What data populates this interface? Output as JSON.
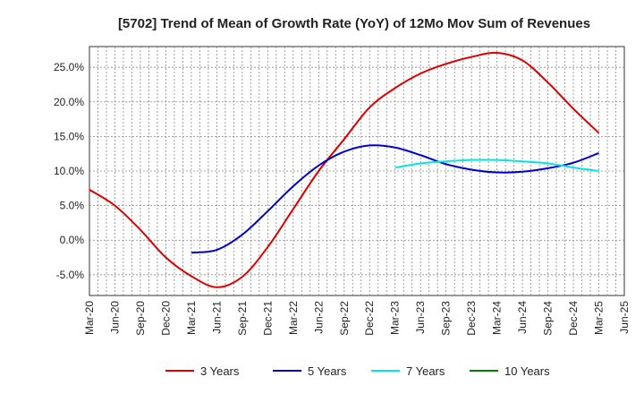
{
  "chart_data": {
    "type": "line",
    "title": "[5702]  Trend of Mean of Growth Rate (YoY) of 12Mo Mov Sum of Revenues",
    "xlabel": "",
    "ylabel": "",
    "ylim": [
      -8,
      28
    ],
    "yticks": [
      -5,
      0,
      5,
      10,
      15,
      20,
      25
    ],
    "ytick_labels": [
      "-5.0%",
      "0.0%",
      "5.0%",
      "10.0%",
      "15.0%",
      "20.0%",
      "25.0%"
    ],
    "categories": [
      "Mar-20",
      "Jun-20",
      "Sep-20",
      "Dec-20",
      "Mar-21",
      "Jun-21",
      "Sep-21",
      "Dec-21",
      "Mar-22",
      "Jun-22",
      "Sep-22",
      "Dec-22",
      "Mar-23",
      "Jun-23",
      "Sep-23",
      "Dec-23",
      "Mar-24",
      "Jun-24",
      "Sep-24",
      "Dec-24",
      "Mar-25",
      "Jun-25"
    ],
    "grid": true,
    "legend_position": "bottom",
    "series": [
      {
        "name": "3 Years",
        "color": "#dd0000",
        "values": [
          7.3,
          5.0,
          1.5,
          -2.5,
          -5.2,
          -6.8,
          -5.3,
          -1.0,
          4.5,
          10.0,
          14.6,
          19.2,
          22.0,
          24.1,
          25.5,
          26.5,
          27.1,
          26.0,
          22.8,
          19.0,
          15.5,
          null
        ]
      },
      {
        "name": "5 Years",
        "color": "#0000cc",
        "values": [
          null,
          null,
          null,
          null,
          -1.8,
          -1.4,
          0.8,
          4.2,
          7.8,
          10.8,
          12.8,
          13.7,
          13.4,
          12.3,
          11.0,
          10.2,
          9.8,
          9.9,
          10.4,
          11.2,
          12.6,
          null
        ]
      },
      {
        "name": "7 Years",
        "color": "#00e5e5",
        "values": [
          null,
          null,
          null,
          null,
          null,
          null,
          null,
          null,
          null,
          null,
          null,
          null,
          10.5,
          11.1,
          11.4,
          11.6,
          11.6,
          11.4,
          11.1,
          10.5,
          10.0,
          null
        ]
      },
      {
        "name": "10 Years",
        "color": "#008000",
        "values": [
          null,
          null,
          null,
          null,
          null,
          null,
          null,
          null,
          null,
          null,
          null,
          null,
          null,
          null,
          null,
          null,
          null,
          null,
          null,
          null,
          null,
          null
        ]
      }
    ]
  }
}
